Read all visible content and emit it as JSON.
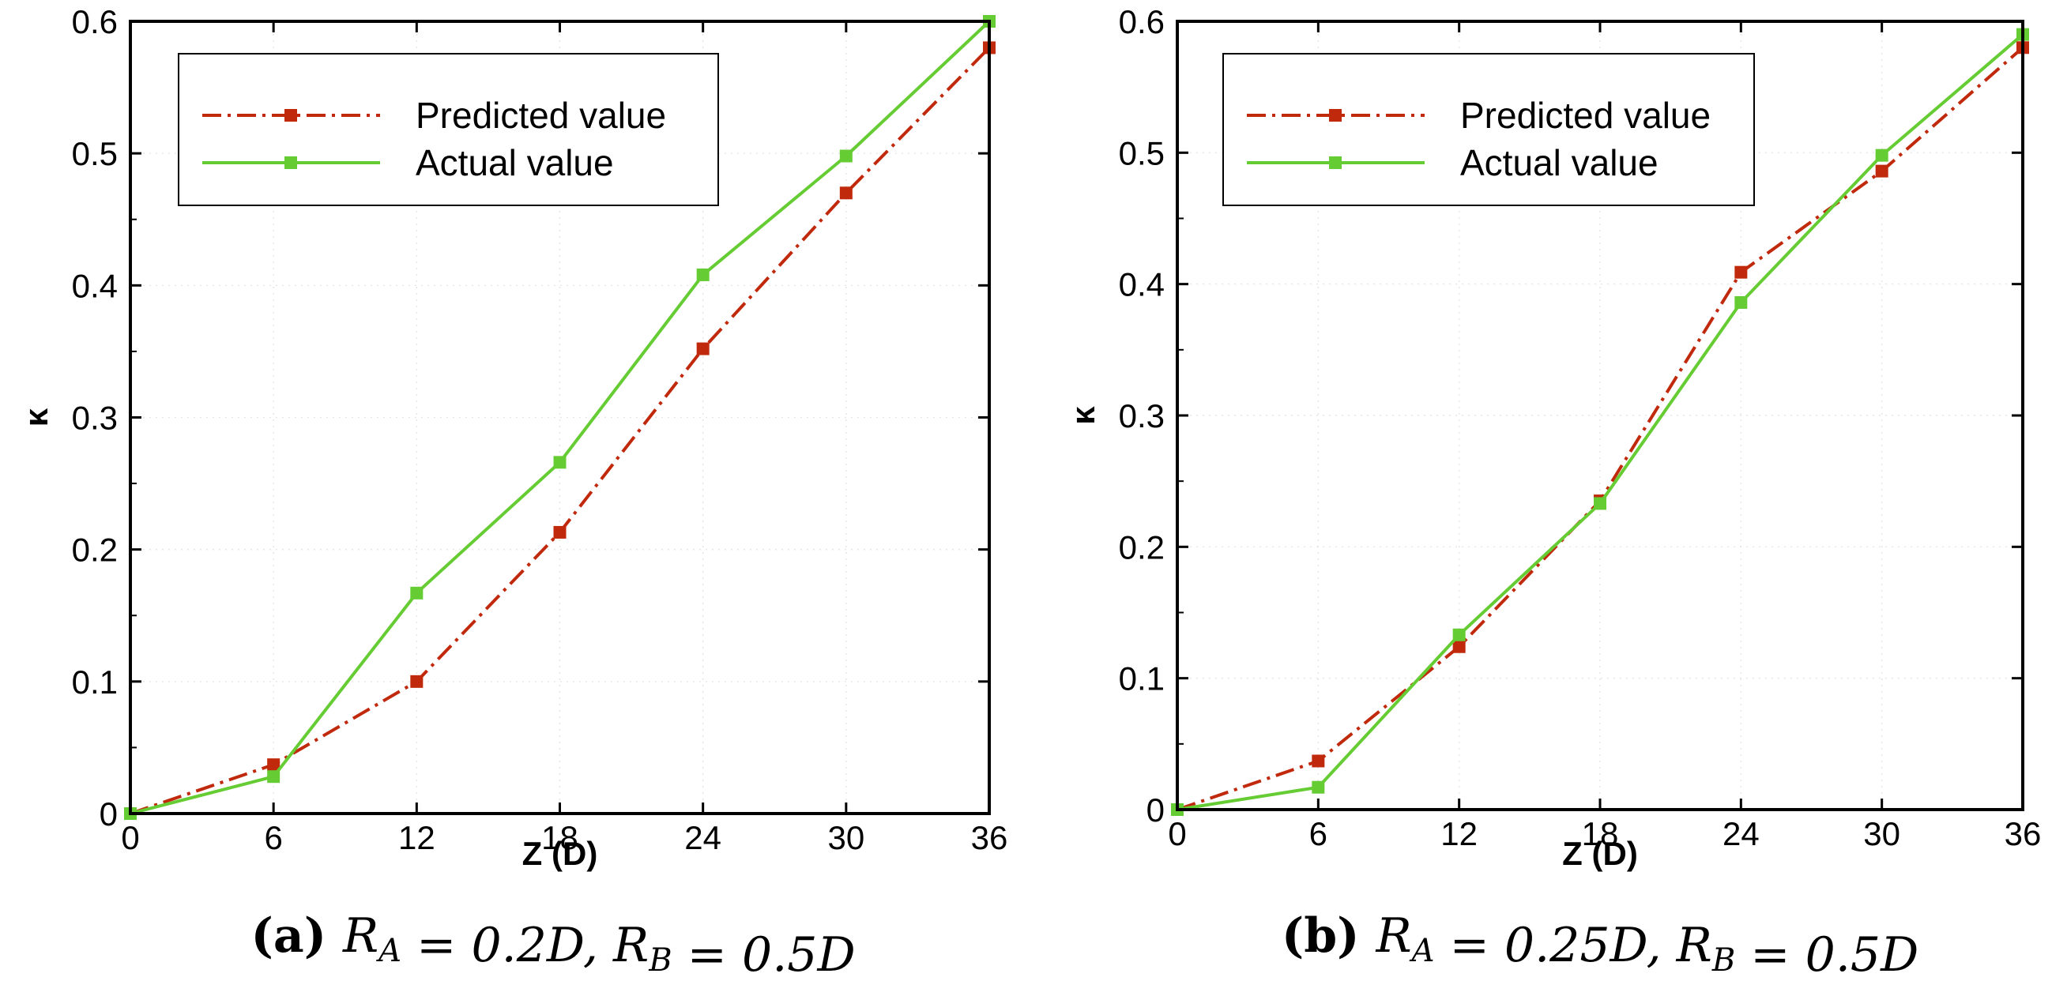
{
  "chart_data": [
    {
      "type": "line",
      "panel": "a",
      "caption": {
        "tag": "(a)",
        "text": "R_A = 0.2D, R_B = 0.5D"
      },
      "xlabel": "Z (D)",
      "ylabel": "κ",
      "xlim": [
        0,
        36
      ],
      "ylim": [
        0,
        0.6
      ],
      "xticks": [
        0,
        6,
        12,
        18,
        24,
        30,
        36
      ],
      "yticks": [
        0,
        0.1,
        0.2,
        0.3,
        0.4,
        0.5,
        0.6
      ],
      "ytick_labels": [
        "0",
        "0.1",
        "0.2",
        "0.3",
        "0.4",
        "0.5",
        "0.6"
      ],
      "x": [
        0,
        6,
        12,
        18,
        24,
        30,
        36
      ],
      "series": [
        {
          "name": "Predicted value",
          "color": "#c0290b",
          "style": "dash-dot",
          "values": [
            0,
            0.037,
            0.1,
            0.213,
            0.352,
            0.47,
            0.58
          ]
        },
        {
          "name": "Actual value",
          "color": "#66cc33",
          "style": "solid",
          "values": [
            0,
            0.028,
            0.167,
            0.266,
            0.408,
            0.498,
            0.6
          ]
        }
      ]
    },
    {
      "type": "line",
      "panel": "b",
      "caption": {
        "tag": "(b)",
        "text": "R_A = 0.25D, R_B = 0.5D"
      },
      "xlabel": "Z (D)",
      "ylabel": "κ",
      "xlim": [
        0,
        36
      ],
      "ylim": [
        0,
        0.6
      ],
      "xticks": [
        0,
        6,
        12,
        18,
        24,
        30,
        36
      ],
      "yticks": [
        0,
        0.1,
        0.2,
        0.3,
        0.4,
        0.5,
        0.6
      ],
      "ytick_labels": [
        "0",
        "0.1",
        "0.2",
        "0.3",
        "0.4",
        "0.5",
        "0.6"
      ],
      "x": [
        0,
        6,
        12,
        18,
        24,
        30,
        36
      ],
      "series": [
        {
          "name": "Predicted value",
          "color": "#c0290b",
          "style": "dash-dot",
          "values": [
            0,
            0.037,
            0.124,
            0.235,
            0.409,
            0.486,
            0.58
          ]
        },
        {
          "name": "Actual value",
          "color": "#66cc33",
          "style": "solid",
          "values": [
            0,
            0.017,
            0.133,
            0.233,
            0.386,
            0.498,
            0.59
          ]
        }
      ]
    }
  ]
}
